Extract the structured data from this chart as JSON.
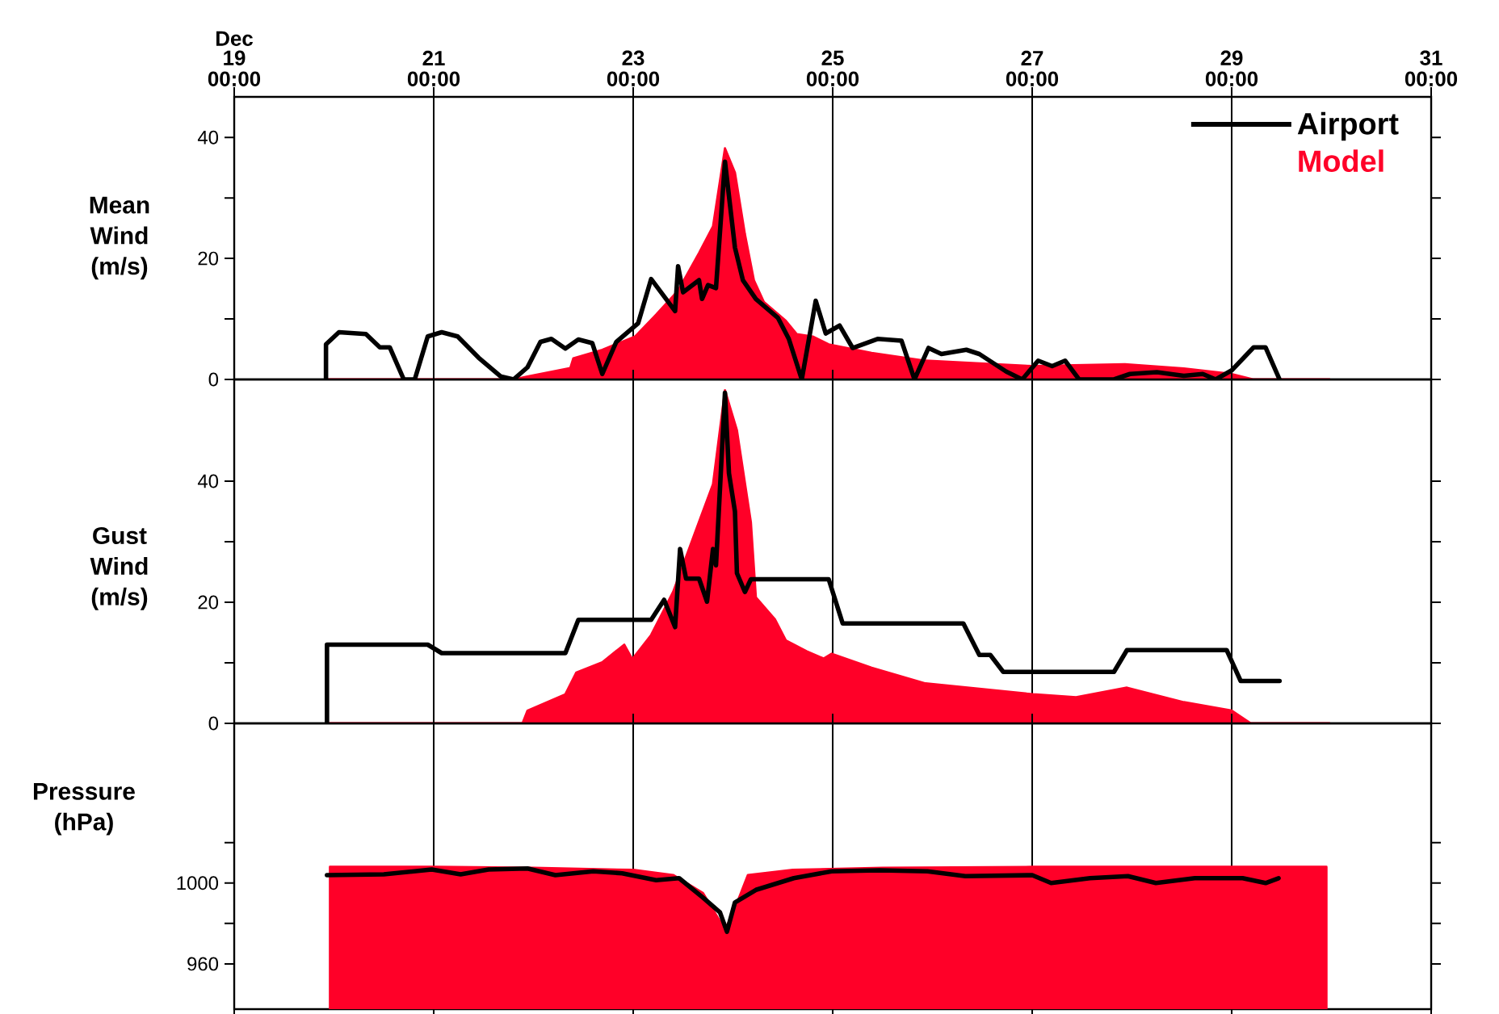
{
  "chart_data": [
    {
      "type": "area",
      "xlabel": "Dec",
      "ylabel": "Mean Wind (m/s)",
      "xlim": [
        19,
        31
      ],
      "xticks": [
        19,
        21,
        23,
        25,
        27,
        29,
        31
      ],
      "annotations": [
        "00:00",
        "00:00",
        "00:00",
        "00:00",
        "00:00",
        "00:00",
        "00:00"
      ],
      "ylim": [
        0,
        46.7
      ],
      "yticks": [
        0,
        {
          "value": 10,
          "label": null
        },
        20,
        {
          "value": 30,
          "label": null
        },
        40
      ],
      "grid": "x",
      "legend": "top right",
      "series": [
        {
          "name": "Airport",
          "type": "line",
          "color": "#000000",
          "x": [
            19.92,
            19.92,
            20.05,
            20.32,
            20.46,
            20.56,
            20.7,
            20.81,
            20.94,
            21.08,
            21.24,
            21.45,
            21.67,
            21.8,
            21.94,
            22.07,
            22.18,
            22.32,
            22.45,
            22.59,
            22.69,
            22.83,
            23.05,
            23.18,
            23.42,
            23.45,
            23.5,
            23.66,
            23.69,
            23.75,
            23.83,
            23.92,
            24.02,
            24.1,
            24.23,
            24.45,
            24.56,
            24.69,
            24.83,
            24.93,
            25.07,
            25.2,
            25.45,
            25.69,
            25.82,
            25.96,
            26.09,
            26.34,
            26.47,
            26.74,
            26.9,
            27.06,
            27.2,
            27.33,
            27.47,
            27.82,
            27.98,
            28.25,
            28.52,
            28.71,
            28.84,
            29.0,
            29.22,
            29.34,
            29.48
          ],
          "values": [
            0,
            5.8,
            7.8,
            7.5,
            5.3,
            5.3,
            0,
            0,
            7.1,
            7.8,
            7.1,
            3.6,
            0.5,
            0,
            2,
            6.2,
            6.7,
            5.1,
            6.6,
            6,
            0.9,
            6.2,
            9.3,
            16.6,
            11.3,
            18.7,
            14.4,
            16.4,
            13.3,
            15.6,
            15.1,
            36,
            21.8,
            16.4,
            13.3,
            10.2,
            6.7,
            0,
            13,
            7.6,
            8.9,
            5.2,
            6.7,
            6.4,
            0,
            5.2,
            4.2,
            4.9,
            4.2,
            1.3,
            0,
            3.1,
            2.2,
            3.1,
            0,
            0,
            0.9,
            1.2,
            0.6,
            0.9,
            0,
            1.5,
            5.3,
            5.3,
            0
          ]
        },
        {
          "name": "Model",
          "color": "#ff0028",
          "x": [
            19.94,
            21.8,
            21.94,
            22.37,
            22.4,
            22.69,
            23.02,
            23.23,
            23.45,
            23.66,
            23.8,
            23.92,
            24.02,
            24.12,
            24.21,
            24.31,
            24.53,
            24.64,
            24.8,
            24.96,
            25.39,
            25.93,
            27.01,
            27.93,
            28.52,
            29.0,
            29.22,
            29.98
          ],
          "values": [
            0,
            0,
            0.5,
            1.9,
            3.5,
            4.9,
            7.1,
            10.7,
            14.7,
            20.9,
            25.3,
            38.2,
            34.2,
            24,
            16.4,
            12.8,
            9.7,
            7.5,
            7.1,
            5.8,
            4.4,
            3.1,
            2.2,
            2.5,
            1.8,
            0.9,
            0,
            0
          ]
        }
      ]
    },
    {
      "type": "area",
      "ylabel": "Gust Wind (m/s)",
      "xlim": [
        19,
        31
      ],
      "tick_labels": "y",
      "xticks": [
        19,
        21,
        23,
        25,
        27,
        29,
        31
      ],
      "ylim": [
        0,
        56.8
      ],
      "yticks": [
        0,
        {
          "value": 10,
          "label": null
        },
        20,
        {
          "value": 30,
          "label": null
        },
        40
      ],
      "grid": "x",
      "series": [
        {
          "type": "line",
          "color": "#000000",
          "x": [
            19.93,
            19.93,
            20.94,
            21.08,
            22.32,
            22.45,
            23.18,
            23.31,
            23.42,
            23.47,
            23.53,
            23.66,
            23.74,
            23.8,
            23.83,
            23.92,
            23.96,
            24.02,
            24.04,
            24.12,
            24.18,
            24.96,
            25.1,
            26.31,
            26.47,
            26.58,
            26.71,
            27.82,
            27.95,
            28.95,
            29.09,
            29.48
          ],
          "values": [
            0,
            13,
            13,
            11.6,
            11.6,
            17.1,
            17.1,
            20.4,
            15.9,
            28.8,
            23.9,
            23.9,
            20.1,
            28.8,
            26.1,
            54.6,
            41.3,
            35,
            24.8,
            21.7,
            23.8,
            23.8,
            16.5,
            16.5,
            11.3,
            11.3,
            8.5,
            8.5,
            12.1,
            12.1,
            7,
            7
          ]
        },
        {
          "color": "#ff0028",
          "x": [
            19.94,
            21.89,
            21.94,
            22.32,
            22.43,
            22.69,
            22.91,
            22.99,
            23.18,
            23.4,
            23.64,
            23.8,
            23.92,
            24.04,
            24.18,
            24.23,
            24.42,
            24.53,
            24.74,
            24.91,
            24.99,
            25.39,
            25.93,
            26.47,
            27.01,
            27.44,
            27.95,
            28.52,
            29.0,
            29.19,
            29.98
          ],
          "values": [
            0,
            0,
            2.1,
            4.8,
            8.4,
            10.1,
            13,
            10.6,
            14.6,
            21.7,
            32.4,
            39.5,
            55,
            48.4,
            33.2,
            20.8,
            17.2,
            13.7,
            11.9,
            10.7,
            11.5,
            9.2,
            6.6,
            5.7,
            4.8,
            4.3,
            5.9,
            3.5,
            2.1,
            0,
            0
          ]
        }
      ]
    },
    {
      "type": "area",
      "ylabel": "Pressure (hPa)",
      "xlim": [
        19,
        31
      ],
      "tick_labels": "y",
      "xticks": [
        19,
        21,
        23,
        25,
        27,
        29,
        31
      ],
      "ylim": [
        937.6,
        1079
      ],
      "yticks": [
        960,
        {
          "value": 980,
          "label": null
        },
        1000,
        {
          "value": 1020,
          "label": null
        }
      ],
      "grid": "x",
      "series": [
        {
          "type": "line",
          "color": "#000000",
          "x": [
            19.93,
            20.5,
            20.98,
            21.27,
            21.55,
            21.94,
            22.22,
            22.6,
            22.89,
            23.23,
            23.46,
            23.7,
            23.87,
            23.94,
            24.02,
            24.23,
            24.61,
            24.99,
            25.47,
            25.95,
            26.33,
            27.0,
            27.19,
            27.58,
            27.96,
            28.24,
            28.63,
            29.11,
            29.34,
            29.47
          ],
          "values": [
            1003.9,
            1004.3,
            1006.7,
            1004.3,
            1006.7,
            1007.2,
            1003.9,
            1005.8,
            1004.8,
            1001.4,
            1002.4,
            992.8,
            985.5,
            975.9,
            990.4,
            996.6,
            1002.4,
            1005.8,
            1006.3,
            1005.8,
            1003.4,
            1003.9,
            1000,
            1002.4,
            1003.4,
            1000,
            1002.4,
            1002.4,
            1000,
            1002.4
          ]
        },
        {
          "color": "#ff0028",
          "x": [
            19.96,
            21.0,
            22.0,
            23.0,
            23.4,
            23.7,
            23.92,
            24.0,
            24.15,
            24.6,
            25.5,
            27.0,
            29.0,
            29.95
          ],
          "values": [
            1008,
            1008,
            1007.5,
            1006.5,
            1004,
            995,
            977,
            985,
            1004,
            1006.5,
            1007.5,
            1008,
            1008,
            1008
          ]
        }
      ]
    }
  ]
}
